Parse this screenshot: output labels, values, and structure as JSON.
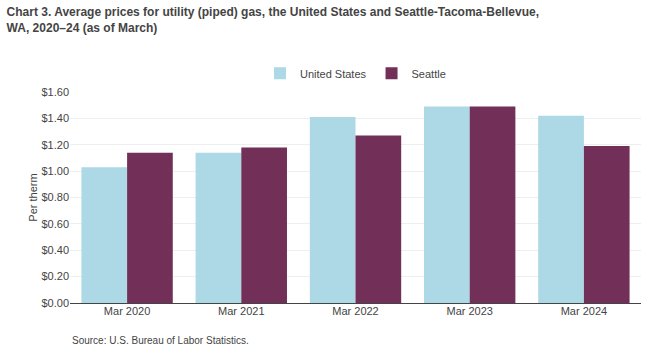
{
  "chart_data": {
    "type": "bar",
    "title": "Chart 3. Average prices for utility (piped) gas, the United States and Seattle-Tacoma-Bellevue,",
    "subtitle": "WA, 2020–24 (as of March)",
    "y_label": "Per therm",
    "categories": [
      "Mar 2020",
      "Mar 2021",
      "Mar 2022",
      "Mar 2023",
      "Mar 2024"
    ],
    "series": [
      {
        "name": "United States",
        "color": "#ADD8E6",
        "values": [
          1.03,
          1.14,
          1.41,
          1.49,
          1.42
        ]
      },
      {
        "name": "Seattle",
        "color": "#722F57",
        "values": [
          1.14,
          1.18,
          1.27,
          1.49,
          1.19
        ]
      }
    ],
    "ylim": [
      0.0,
      1.6
    ],
    "yticks": [
      {
        "value": 0.0,
        "label": "$0.00"
      },
      {
        "value": 0.2,
        "label": "$0.20"
      },
      {
        "value": 0.4,
        "label": "$0.40"
      },
      {
        "value": 0.6,
        "label": "$0.60"
      },
      {
        "value": 0.8,
        "label": "$0.80"
      },
      {
        "value": 1.0,
        "label": "$1.00"
      },
      {
        "value": 1.2,
        "label": "$1.20"
      },
      {
        "value": 1.4,
        "label": "$1.40"
      },
      {
        "value": 1.6,
        "label": "$1.60"
      }
    ],
    "grid": true,
    "legend": "top",
    "annotations": [
      "Source: U.S. Bureau of Labor Statistics."
    ]
  }
}
